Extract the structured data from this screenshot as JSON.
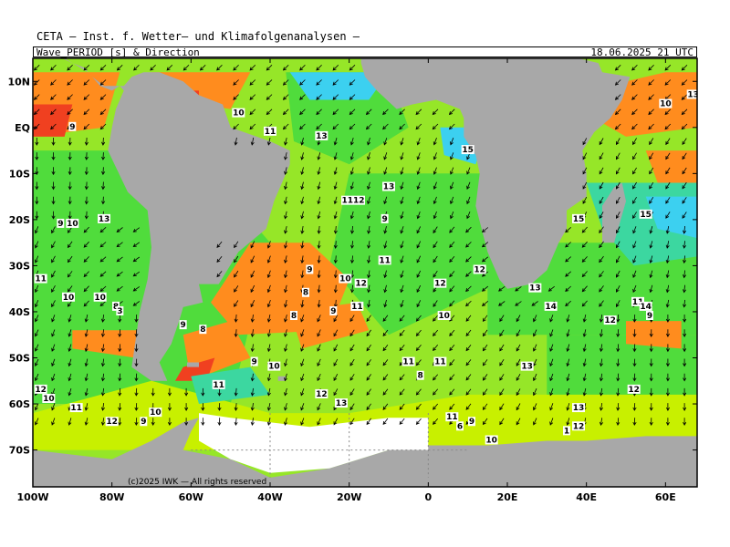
{
  "header": {
    "institute": "CETA — Inst. f. Wetter— und Klimafolgenanalysen —",
    "product": "Wave_PERIOD [s] & Direction",
    "datetime": "18.06.2025 21 UTC"
  },
  "copyright": "(c)2025 IWK — All rights reserved",
  "map": {
    "lon_range": [
      -100,
      68
    ],
    "lat_range": [
      -78,
      15
    ],
    "y_axis_labels": [
      {
        "label": "10N",
        "lat": 10
      },
      {
        "label": "EQ",
        "lat": 0
      },
      {
        "label": "10S",
        "lat": -10
      },
      {
        "label": "20S",
        "lat": -20
      },
      {
        "label": "30S",
        "lat": -30
      },
      {
        "label": "40S",
        "lat": -40
      },
      {
        "label": "50S",
        "lat": -50
      },
      {
        "label": "60S",
        "lat": -60
      },
      {
        "label": "70S",
        "lat": -70
      }
    ],
    "x_axis_labels": [
      {
        "label": "100W",
        "lon": -100
      },
      {
        "label": "80W",
        "lon": -80
      },
      {
        "label": "60W",
        "lon": -60
      },
      {
        "label": "40W",
        "lon": -40
      },
      {
        "label": "20W",
        "lon": -20
      },
      {
        "label": "0",
        "lon": 0
      },
      {
        "label": "20E",
        "lon": 20
      },
      {
        "label": "40E",
        "lon": 40
      },
      {
        "label": "60E",
        "lon": 60
      }
    ],
    "colors": {
      "land": "#a8a8a8",
      "ice": "#ffffff",
      "p_short": "#f04020",
      "p_orange": "#ff8c1e",
      "p_yellow": "#c8f000",
      "p_lime": "#96e628",
      "p_green": "#50dc3c",
      "p_teal": "#3cd7a0",
      "p_cyan": "#3cd0f0",
      "p_magenta": "#ff00ff"
    },
    "period_labels": [
      {
        "t": "10",
        "lon": -48,
        "lat": 3
      },
      {
        "t": "11",
        "lon": -40,
        "lat": -1
      },
      {
        "t": "13",
        "lon": -27,
        "lat": -2
      },
      {
        "t": "9",
        "lon": -90,
        "lat": 0
      },
      {
        "t": "13",
        "lon": -10,
        "lat": -13
      },
      {
        "t": "1112",
        "lon": -19,
        "lat": -16
      },
      {
        "t": "9",
        "lon": -11,
        "lat": -20
      },
      {
        "t": "13",
        "lon": -82,
        "lat": -20
      },
      {
        "t": "9",
        "lon": -93,
        "lat": -21
      },
      {
        "t": "10",
        "lon": -90,
        "lat": -21
      },
      {
        "t": "15",
        "lon": 10,
        "lat": -5
      },
      {
        "t": "10",
        "lon": 60,
        "lat": 5
      },
      {
        "t": "13",
        "lon": 67,
        "lat": 7
      },
      {
        "t": "15",
        "lon": 38,
        "lat": -20
      },
      {
        "t": "15",
        "lon": 55,
        "lat": -19
      },
      {
        "t": "11",
        "lon": -98,
        "lat": -33
      },
      {
        "t": "10",
        "lon": -91,
        "lat": -37
      },
      {
        "t": "10",
        "lon": -83,
        "lat": -37
      },
      {
        "t": "8",
        "lon": -79,
        "lat": -39
      },
      {
        "t": "3",
        "lon": -78,
        "lat": -40
      },
      {
        "t": "9",
        "lon": -30,
        "lat": -31
      },
      {
        "t": "10",
        "lon": -21,
        "lat": -33
      },
      {
        "t": "12",
        "lon": -17,
        "lat": -34
      },
      {
        "t": "11",
        "lon": -11,
        "lat": -29
      },
      {
        "t": "12",
        "lon": 13,
        "lat": -31
      },
      {
        "t": "12",
        "lon": 3,
        "lat": -34
      },
      {
        "t": "13",
        "lon": 27,
        "lat": -35
      },
      {
        "t": "14",
        "lon": 31,
        "lat": -39
      },
      {
        "t": "11",
        "lon": 53,
        "lat": -38
      },
      {
        "t": "14",
        "lon": 55,
        "lat": -39
      },
      {
        "t": "9",
        "lon": 56,
        "lat": -41
      },
      {
        "t": "12",
        "lon": 46,
        "lat": -42
      },
      {
        "t": "8",
        "lon": -31,
        "lat": -36
      },
      {
        "t": "9",
        "lon": -24,
        "lat": -40
      },
      {
        "t": "11",
        "lon": -18,
        "lat": -39
      },
      {
        "t": "8",
        "lon": -34,
        "lat": -41
      },
      {
        "t": "10",
        "lon": 4,
        "lat": -41
      },
      {
        "t": "9",
        "lon": -62,
        "lat": -43
      },
      {
        "t": "8",
        "lon": -57,
        "lat": -44
      },
      {
        "t": "9",
        "lon": -44,
        "lat": -51
      },
      {
        "t": "10",
        "lon": -39,
        "lat": -52
      },
      {
        "t": "11",
        "lon": -5,
        "lat": -51
      },
      {
        "t": "11",
        "lon": 3,
        "lat": -51
      },
      {
        "t": "8",
        "lon": -2,
        "lat": -54
      },
      {
        "t": "13",
        "lon": 25,
        "lat": -52
      },
      {
        "t": "11",
        "lon": -53,
        "lat": -56
      },
      {
        "t": "12",
        "lon": -27,
        "lat": -58
      },
      {
        "t": "13",
        "lon": -22,
        "lat": -60
      },
      {
        "t": "12",
        "lon": 52,
        "lat": -57
      },
      {
        "t": "12",
        "lon": -98,
        "lat": -57
      },
      {
        "t": "10",
        "lon": -96,
        "lat": -59
      },
      {
        "t": "11",
        "lon": -89,
        "lat": -61
      },
      {
        "t": "12",
        "lon": -80,
        "lat": -64
      },
      {
        "t": "9",
        "lon": -72,
        "lat": -64
      },
      {
        "t": "10",
        "lon": -69,
        "lat": -62
      },
      {
        "t": "13",
        "lon": 38,
        "lat": -61
      },
      {
        "t": "11",
        "lon": 6,
        "lat": -63
      },
      {
        "t": "6",
        "lon": 8,
        "lat": -65
      },
      {
        "t": "9",
        "lon": 11,
        "lat": -64
      },
      {
        "t": "10",
        "lon": 16,
        "lat": -68
      },
      {
        "t": "1",
        "lon": 35,
        "lat": -66
      },
      {
        "t": "12",
        "lon": 38,
        "lat": -65
      }
    ]
  }
}
